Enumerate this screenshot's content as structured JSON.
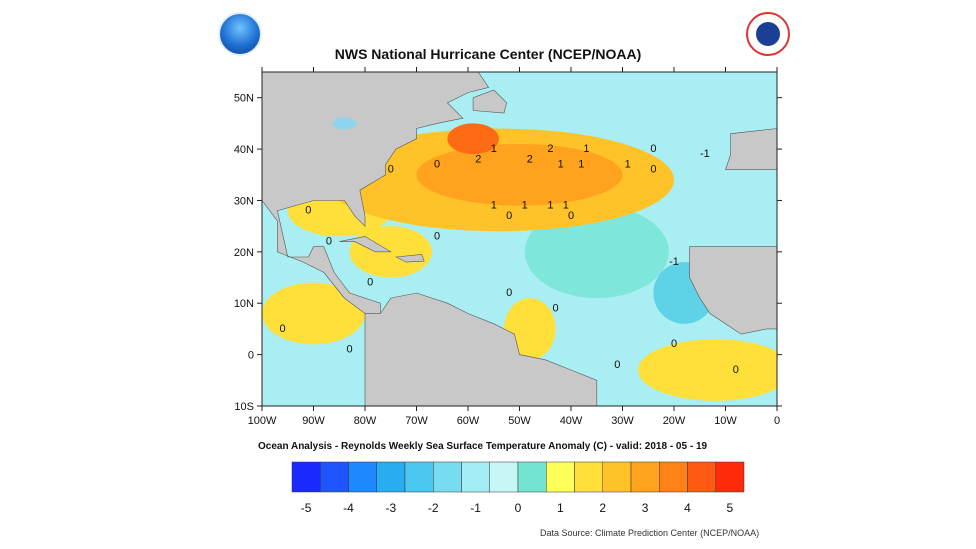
{
  "header": {
    "title": "NWS National Hurricane Center (NCEP/NOAA)",
    "subtitle": "Ocean Analysis - Reynolds Weekly Sea Surface Temperature Anomaly (C) - valid: 2018 - 05 - 19",
    "source": "Data Source: Climate Prediction Center (NCEP/NOAA)"
  },
  "logos": {
    "left": "noaa-logo",
    "right": "nws-logo"
  },
  "chart_data": {
    "type": "heatmap",
    "title": "NWS National Hurricane Center (NCEP/NOAA)",
    "subtitle": "Ocean Analysis - Reynolds Weekly Sea Surface Temperature Anomaly (C) - valid: 2018 - 05 - 19",
    "xlim": [
      -100,
      0
    ],
    "ylim": [
      -10,
      55
    ],
    "x_ticks": [
      {
        "value": -100,
        "label": "100W"
      },
      {
        "value": -90,
        "label": "90W"
      },
      {
        "value": -80,
        "label": "80W"
      },
      {
        "value": -70,
        "label": "70W"
      },
      {
        "value": -60,
        "label": "60W"
      },
      {
        "value": -50,
        "label": "50W"
      },
      {
        "value": -40,
        "label": "40W"
      },
      {
        "value": -30,
        "label": "30W"
      },
      {
        "value": -20,
        "label": "20W"
      },
      {
        "value": -10,
        "label": "10W"
      },
      {
        "value": 0,
        "label": "0"
      }
    ],
    "y_ticks": [
      {
        "value": 50,
        "label": "50N"
      },
      {
        "value": 40,
        "label": "40N"
      },
      {
        "value": 30,
        "label": "30N"
      },
      {
        "value": 20,
        "label": "20N"
      },
      {
        "value": 10,
        "label": "10N"
      },
      {
        "value": 0,
        "label": "0"
      },
      {
        "value": -10,
        "label": "10S"
      }
    ],
    "colorbar": {
      "labels": [
        "-5",
        "-4",
        "-3",
        "-2",
        "-1",
        "0",
        "1",
        "2",
        "3",
        "4",
        "5"
      ],
      "colors": [
        "#1a2aff",
        "#1f55ff",
        "#1e88ff",
        "#28aef0",
        "#4cc8f0",
        "#78dcf0",
        "#a4ecf4",
        "#c6f6f6",
        "#74e4d2",
        "#ffff5a",
        "#ffe03a",
        "#ffc228",
        "#ffa21e",
        "#ff8218",
        "#ff5a14",
        "#ff2a0a"
      ]
    },
    "anomaly_regions": [
      {
        "lon": -54,
        "lat": 34,
        "value": 1.2
      },
      {
        "lon": -50,
        "lat": 35,
        "value": 2.0
      },
      {
        "lon": -59,
        "lat": 42,
        "value": 3.0
      },
      {
        "lon": -85,
        "lat": 28,
        "value": 0.7
      },
      {
        "lon": -75,
        "lat": 20,
        "value": 0.6
      },
      {
        "lon": -90,
        "lat": 8,
        "value": 0.5
      },
      {
        "lon": -48,
        "lat": 5,
        "value": 0.6
      },
      {
        "lon": -12,
        "lat": -3,
        "value": 0.8
      },
      {
        "lon": -35,
        "lat": 20,
        "value": -0.3
      },
      {
        "lon": -18,
        "lat": 12,
        "value": -0.8
      }
    ],
    "contour_labels": [
      {
        "lon": -55,
        "lat": 40,
        "text": "1"
      },
      {
        "lon": -58,
        "lat": 38,
        "text": "2"
      },
      {
        "lon": -48,
        "lat": 38,
        "text": "2"
      },
      {
        "lon": -44,
        "lat": 40,
        "text": "2"
      },
      {
        "lon": -42,
        "lat": 37,
        "text": "1"
      },
      {
        "lon": -38,
        "lat": 37,
        "text": "1"
      },
      {
        "lon": -55,
        "lat": 29,
        "text": "1"
      },
      {
        "lon": -49,
        "lat": 29,
        "text": "1"
      },
      {
        "lon": -44,
        "lat": 29,
        "text": "1"
      },
      {
        "lon": -41,
        "lat": 29,
        "text": "1"
      },
      {
        "lon": -37,
        "lat": 40,
        "text": "1"
      },
      {
        "lon": -24,
        "lat": 40,
        "text": "0"
      },
      {
        "lon": -66,
        "lat": 37,
        "text": "0"
      },
      {
        "lon": -75,
        "lat": 36,
        "text": "0"
      },
      {
        "lon": -24,
        "lat": 36,
        "text": "0"
      },
      {
        "lon": -29,
        "lat": 37,
        "text": "1"
      },
      {
        "lon": -14,
        "lat": 39,
        "text": "-1"
      },
      {
        "lon": -52,
        "lat": 27,
        "text": "0"
      },
      {
        "lon": -40,
        "lat": 27,
        "text": "0"
      },
      {
        "lon": -66,
        "lat": 23,
        "text": "0"
      },
      {
        "lon": -91,
        "lat": 28,
        "text": "0"
      },
      {
        "lon": -87,
        "lat": 22,
        "text": "0"
      },
      {
        "lon": -79,
        "lat": 14,
        "text": "0"
      },
      {
        "lon": -52,
        "lat": 12,
        "text": "0"
      },
      {
        "lon": -43,
        "lat": 9,
        "text": "0"
      },
      {
        "lon": -96,
        "lat": 5,
        "text": "0"
      },
      {
        "lon": -83,
        "lat": 1,
        "text": "0"
      },
      {
        "lon": -31,
        "lat": -2,
        "text": "0"
      },
      {
        "lon": -20,
        "lat": 2,
        "text": "0"
      },
      {
        "lon": -20,
        "lat": 18,
        "text": "-1"
      },
      {
        "lon": -8,
        "lat": -3,
        "text": "0"
      }
    ]
  }
}
